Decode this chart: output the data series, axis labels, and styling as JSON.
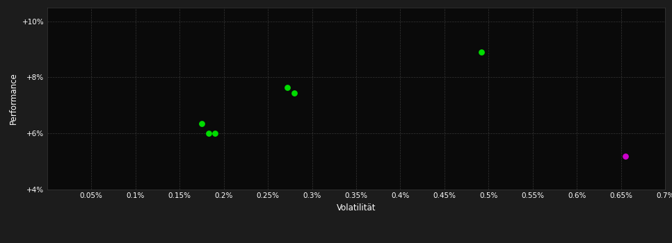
{
  "background_color": "#1c1c1c",
  "plot_bg_color": "#0a0a0a",
  "grid_color": "#3a3a3a",
  "text_color": "#ffffff",
  "xlabel": "Volatilität",
  "ylabel": "Performance",
  "xlim": [
    0.0,
    0.007
  ],
  "ylim": [
    0.04,
    0.105
  ],
  "xticks": [
    0.0005,
    0.001,
    0.0015,
    0.002,
    0.0025,
    0.003,
    0.0035,
    0.004,
    0.0045,
    0.005,
    0.0055,
    0.006,
    0.0065,
    0.007
  ],
  "xtick_labels": [
    "0.05%",
    "0.1%",
    "0.15%",
    "0.2%",
    "0.25%",
    "0.3%",
    "0.35%",
    "0.4%",
    "0.45%",
    "0.5%",
    "0.55%",
    "0.6%",
    "0.65%",
    "0.7%"
  ],
  "yticks": [
    0.04,
    0.06,
    0.08,
    0.1
  ],
  "ytick_labels": [
    "+4%",
    "+6%",
    "+8%",
    "+10%"
  ],
  "green_points": [
    [
      0.00175,
      0.0635
    ],
    [
      0.00183,
      0.06
    ],
    [
      0.0019,
      0.06
    ],
    [
      0.00272,
      0.0765
    ],
    [
      0.0028,
      0.0745
    ],
    [
      0.00492,
      0.089
    ]
  ],
  "magenta_points": [
    [
      0.00655,
      0.052
    ]
  ],
  "green_color": "#00dd00",
  "magenta_color": "#cc00cc",
  "point_size": 28
}
